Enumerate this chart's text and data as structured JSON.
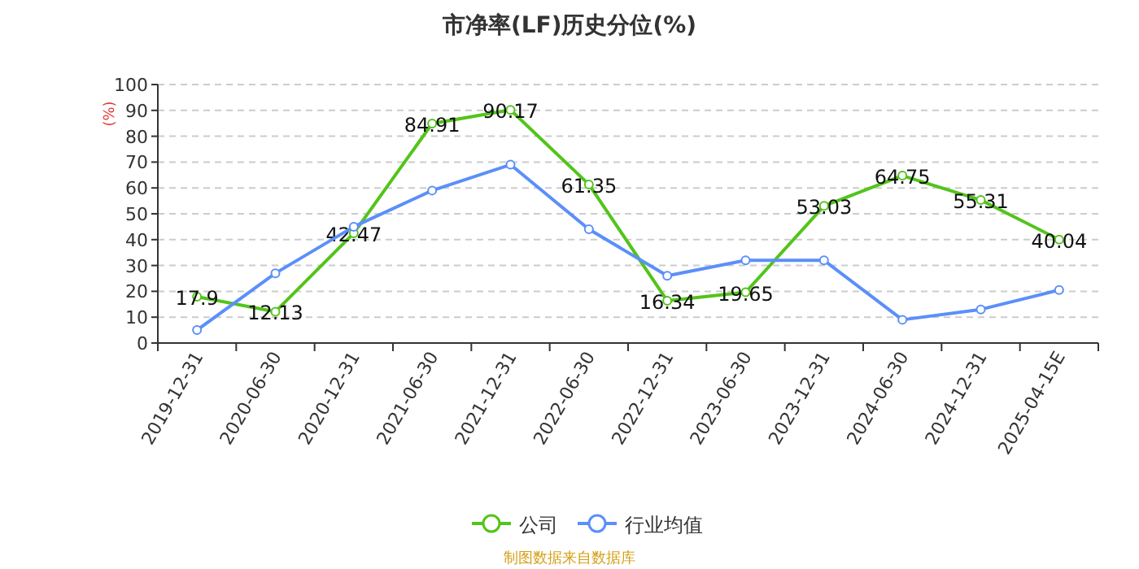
{
  "chart_data": {
    "type": "line",
    "title": "市净率(LF)历史分位(%)",
    "ylabel": "(%)",
    "categories": [
      "2019-12-31",
      "2020-06-30",
      "2020-12-31",
      "2021-06-30",
      "2021-12-31",
      "2022-06-30",
      "2022-12-31",
      "2023-06-30",
      "2023-12-31",
      "2024-06-30",
      "2024-12-31",
      "2025-04-15E"
    ],
    "series": [
      {
        "name": "公司",
        "color": "#52c41a",
        "values": [
          17.9,
          12.13,
          42.47,
          84.91,
          90.17,
          61.35,
          16.34,
          19.65,
          53.03,
          64.75,
          55.31,
          40.04
        ],
        "value_labels": [
          "17.9",
          "12.13",
          "42.47",
          "84.91",
          "90.17",
          "61.35",
          "16.34",
          "19.65",
          "53.03",
          "64.75",
          "55.31",
          "40.04"
        ]
      },
      {
        "name": "行业均值",
        "color": "#5b8ff9",
        "values": [
          5,
          27,
          45,
          59,
          69,
          44,
          26,
          32,
          32,
          9,
          13,
          20.5
        ]
      }
    ],
    "ylim": [
      0,
      100
    ],
    "yticks": [
      0,
      10,
      20,
      30,
      40,
      50,
      60,
      70,
      80,
      90,
      100
    ],
    "grid": "y",
    "legend": "bottom",
    "marker": "circle",
    "annotations": [
      "制图数据来自数据库"
    ]
  }
}
